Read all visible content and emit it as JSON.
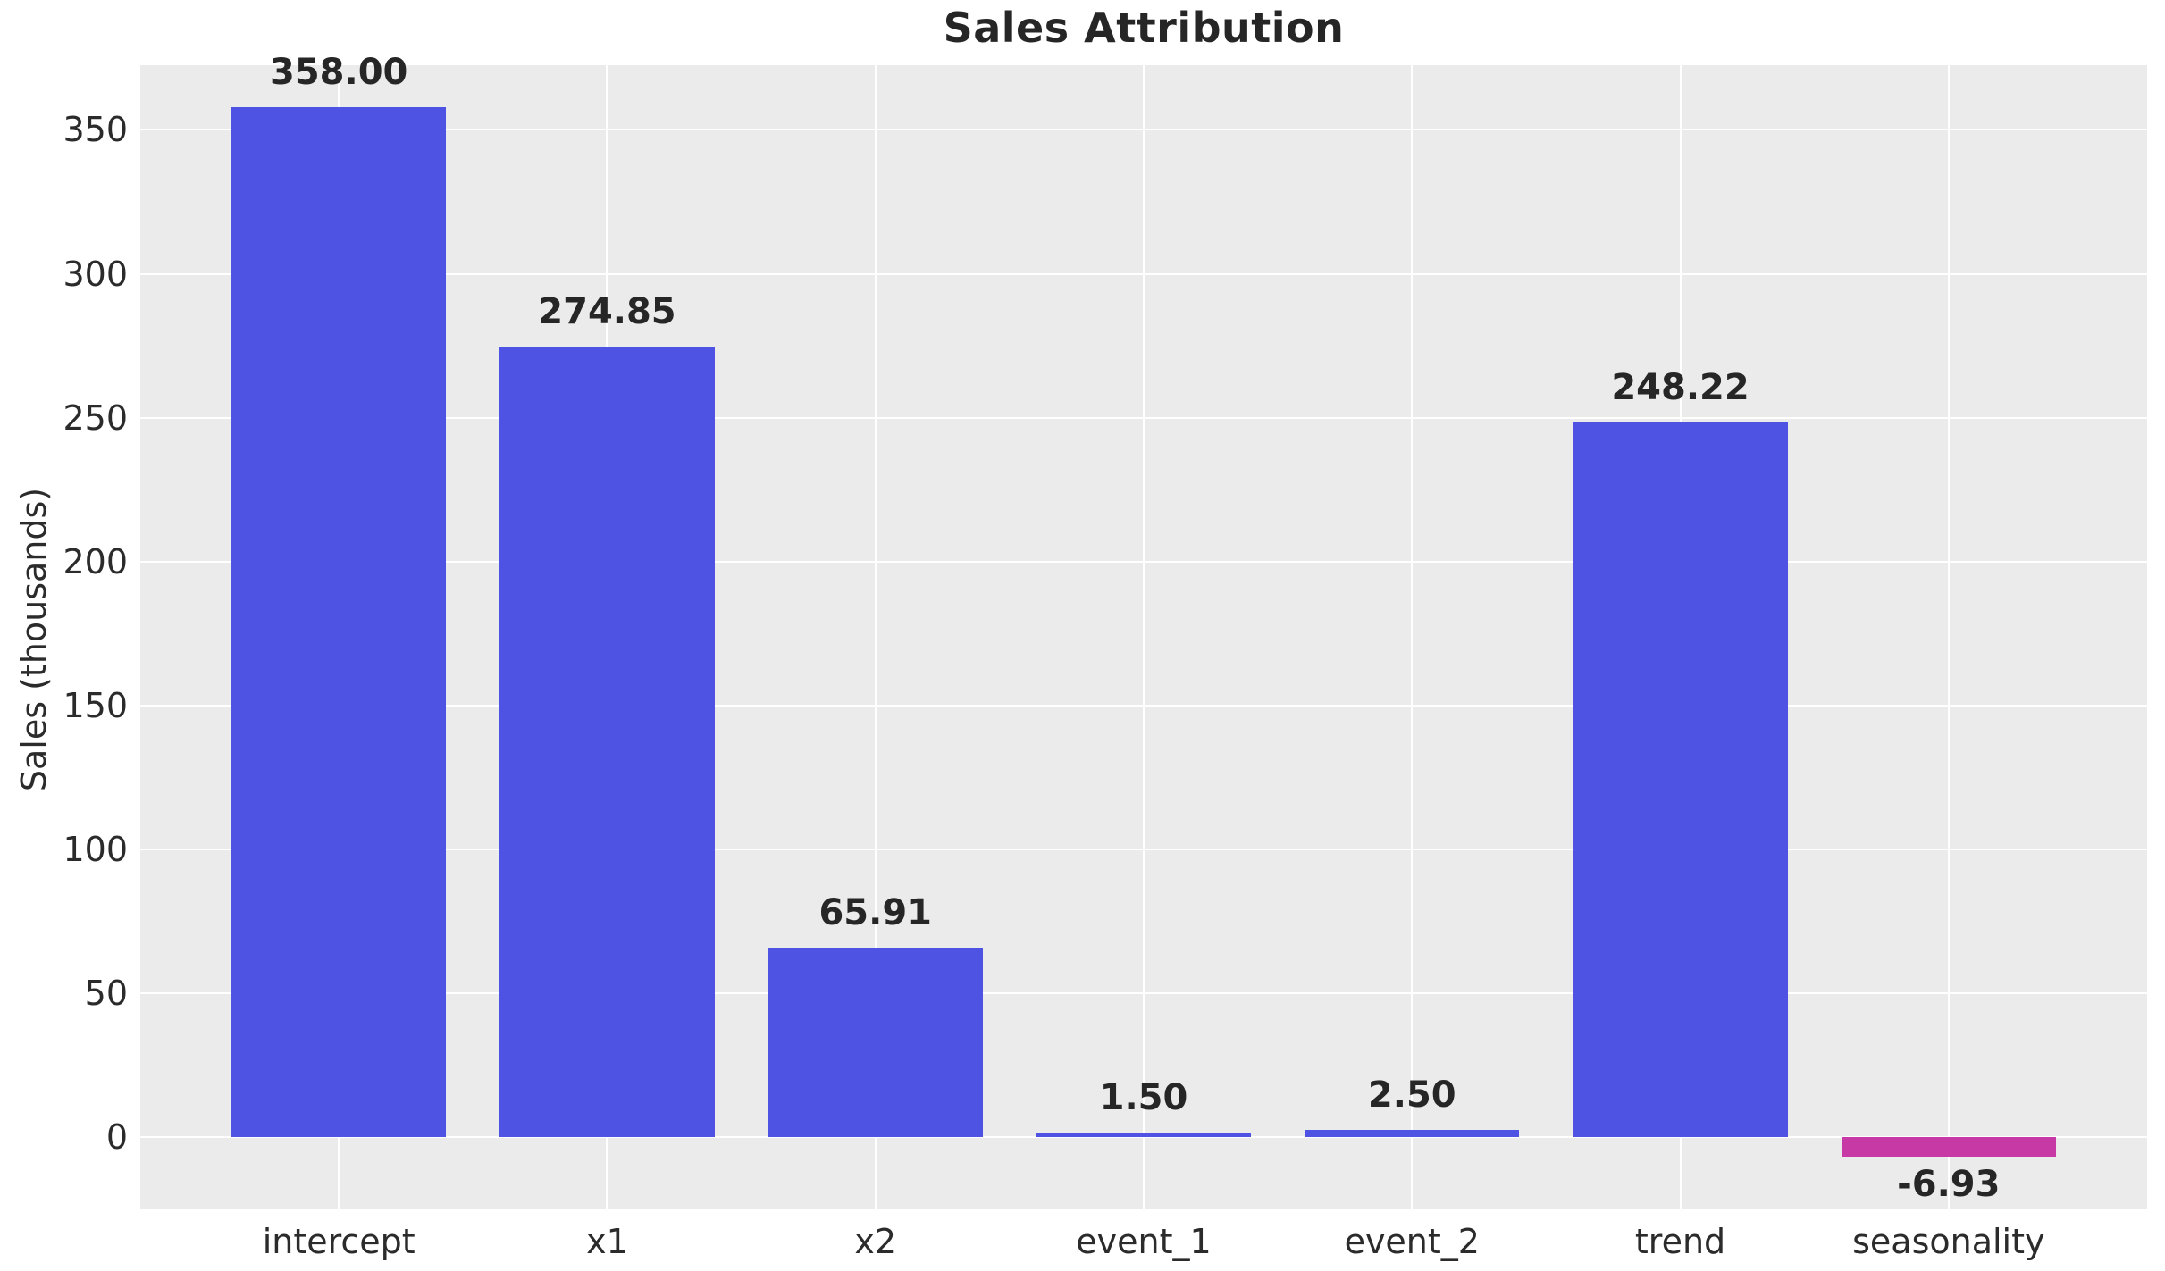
{
  "chart_data": {
    "type": "bar",
    "title": "Sales Attribution",
    "xlabel": "",
    "ylabel": "Sales (thousands)",
    "categories": [
      "intercept",
      "x1",
      "x2",
      "event_1",
      "event_2",
      "trend",
      "seasonality"
    ],
    "values": [
      358.0,
      274.85,
      65.91,
      1.5,
      2.5,
      248.22,
      -6.93
    ],
    "value_labels": [
      "358.00",
      "274.85",
      "65.91",
      "1.50",
      "2.50",
      "248.22",
      "-6.93"
    ],
    "bar_colors": [
      "#4f53e4",
      "#4f53e4",
      "#4f53e4",
      "#4f53e4",
      "#4f53e4",
      "#4f53e4",
      "#c739a4"
    ],
    "yticks": [
      0,
      50,
      100,
      150,
      200,
      250,
      300,
      350
    ],
    "ytick_labels": [
      "0",
      "50",
      "100",
      "150",
      "200",
      "250",
      "300",
      "350"
    ],
    "ylim": [
      -25.2,
      372.5
    ],
    "xlim": [
      -0.74,
      6.74
    ],
    "bar_width": 0.8,
    "grid": true,
    "legend": false,
    "colors": {
      "plot_background": "#ebebeb",
      "figure_background": "#ffffff",
      "gridline": "#ffffff",
      "bar_default": "#4f53e4",
      "bar_negative": "#c739a4",
      "title_text": "#262626",
      "tick_text": "#2b2b2b",
      "value_text": "#262626"
    }
  }
}
